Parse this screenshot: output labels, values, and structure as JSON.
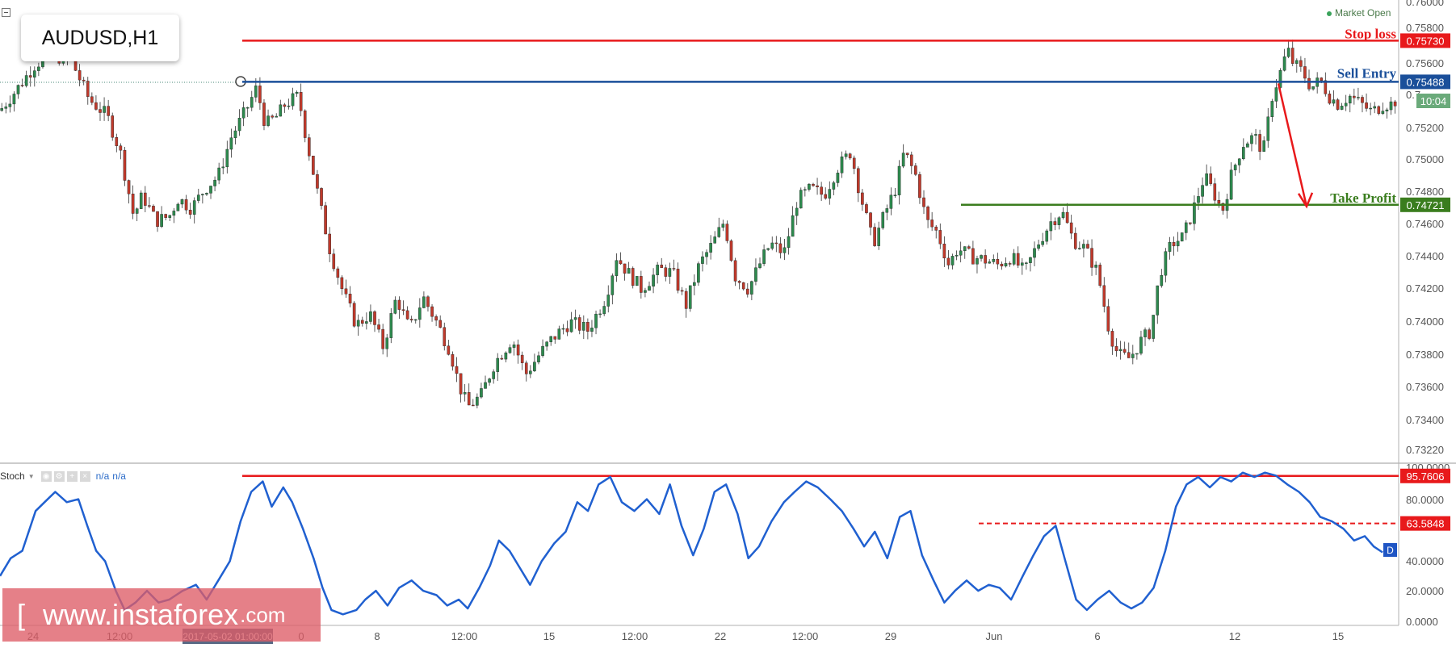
{
  "symbol": "AUDUSD,H1",
  "market_status": "Market Open",
  "watermark": {
    "bracket": "[",
    "site": "www.instaforex",
    "tld": ".com"
  },
  "indicator": {
    "name": "Stoch",
    "value1": "n/a",
    "value2": "n/a"
  },
  "crosshair_time_label": "2017-05-02 01:00:00",
  "countdown": "10:04",
  "colors": {
    "up": "#2d8a4e",
    "down": "#c0392b",
    "red_line": "#e8191b",
    "blue_line": "#1a4f9a",
    "green_line": "#3a7d1e",
    "stoch_line": "#2060d0"
  },
  "chart_data": [
    {
      "type": "candlestick",
      "ylim": [
        0.7314,
        0.7609
      ],
      "yticks": [
        "0.76000",
        "0.75800",
        "0.75600",
        "0.75200",
        "0.75000",
        "0.74800",
        "0.74600",
        "0.74400",
        "0.74200",
        "0.74000",
        "0.73800",
        "0.73600",
        "0.73400",
        "0.73220"
      ],
      "xticks": [
        "24",
        "12:00",
        "0",
        "8",
        "12:00",
        "15",
        "12:00",
        "22",
        "12:00",
        "29",
        "Jun",
        "6",
        "12",
        "15"
      ],
      "close_path": [
        [
          0,
          0.7531
        ],
        [
          20,
          0.7545
        ],
        [
          40,
          0.756
        ],
        [
          60,
          0.7565
        ],
        [
          80,
          0.7562
        ],
        [
          100,
          0.7538
        ],
        [
          120,
          0.7528
        ],
        [
          135,
          0.7505
        ],
        [
          150,
          0.7465
        ],
        [
          160,
          0.7478
        ],
        [
          175,
          0.7462
        ],
        [
          190,
          0.7465
        ],
        [
          200,
          0.7476
        ],
        [
          215,
          0.747
        ],
        [
          230,
          0.7482
        ],
        [
          245,
          0.749
        ],
        [
          260,
          0.7515
        ],
        [
          275,
          0.753
        ],
        [
          288,
          0.7545
        ],
        [
          298,
          0.7522
        ],
        [
          312,
          0.7528
        ],
        [
          320,
          0.7535
        ],
        [
          335,
          0.754
        ],
        [
          345,
          0.751
        ],
        [
          360,
          0.747
        ],
        [
          370,
          0.7445
        ],
        [
          385,
          0.7418
        ],
        [
          400,
          0.7398
        ],
        [
          415,
          0.7405
        ],
        [
          430,
          0.7385
        ],
        [
          445,
          0.7415
        ],
        [
          460,
          0.7395
        ],
        [
          475,
          0.7415
        ],
        [
          490,
          0.74
        ],
        [
          505,
          0.7383
        ],
        [
          515,
          0.7362
        ],
        [
          525,
          0.7348
        ],
        [
          540,
          0.7355
        ],
        [
          555,
          0.7375
        ],
        [
          575,
          0.739
        ],
        [
          590,
          0.7368
        ],
        [
          605,
          0.738
        ],
        [
          620,
          0.739
        ],
        [
          640,
          0.74
        ],
        [
          660,
          0.7395
        ],
        [
          680,
          0.7415
        ],
        [
          692,
          0.744
        ],
        [
          705,
          0.743
        ],
        [
          720,
          0.742
        ],
        [
          740,
          0.7432
        ],
        [
          755,
          0.743
        ],
        [
          770,
          0.741
        ],
        [
          785,
          0.7435
        ],
        [
          800,
          0.7448
        ],
        [
          813,
          0.7462
        ],
        [
          825,
          0.7428
        ],
        [
          840,
          0.742
        ],
        [
          855,
          0.7438
        ],
        [
          865,
          0.7448
        ],
        [
          880,
          0.7442
        ],
        [
          895,
          0.7475
        ],
        [
          910,
          0.7482
        ],
        [
          925,
          0.7478
        ],
        [
          940,
          0.7495
        ],
        [
          955,
          0.7505
        ],
        [
          965,
          0.748
        ],
        [
          980,
          0.7448
        ],
        [
          992,
          0.7465
        ],
        [
          1005,
          0.7482
        ],
        [
          1015,
          0.7505
        ],
        [
          1028,
          0.749
        ],
        [
          1040,
          0.7462
        ],
        [
          1052,
          0.7455
        ],
        [
          1065,
          0.7435
        ],
        [
          1075,
          0.7445
        ],
        [
          1090,
          0.744
        ],
        [
          1105,
          0.7438
        ],
        [
          1120,
          0.7435
        ],
        [
          1135,
          0.744
        ],
        [
          1150,
          0.743
        ],
        [
          1165,
          0.7448
        ],
        [
          1180,
          0.7462
        ],
        [
          1192,
          0.7468
        ],
        [
          1205,
          0.745
        ],
        [
          1218,
          0.7445
        ],
        [
          1232,
          0.743
        ],
        [
          1245,
          0.7395
        ],
        [
          1255,
          0.738
        ],
        [
          1268,
          0.7378
        ],
        [
          1280,
          0.7388
        ],
        [
          1292,
          0.7395
        ],
        [
          1302,
          0.743
        ],
        [
          1315,
          0.7448
        ],
        [
          1328,
          0.7452
        ],
        [
          1340,
          0.747
        ],
        [
          1352,
          0.749
        ],
        [
          1362,
          0.748
        ],
        [
          1372,
          0.7468
        ],
        [
          1382,
          0.749
        ],
        [
          1395,
          0.751
        ],
        [
          1408,
          0.7515
        ],
        [
          1418,
          0.7505
        ],
        [
          1428,
          0.754
        ],
        [
          1438,
          0.7556
        ],
        [
          1445,
          0.7568
        ],
        [
          1452,
          0.756
        ],
        [
          1462,
          0.7555
        ],
        [
          1472,
          0.7545
        ],
        [
          1482,
          0.755
        ],
        [
          1492,
          0.754
        ],
        [
          1502,
          0.7535
        ],
        [
          1515,
          0.754
        ],
        [
          1528,
          0.7535
        ],
        [
          1540,
          0.753
        ],
        [
          1553,
          0.7535
        ],
        [
          1563,
          0.7535
        ],
        [
          1570,
          0.754
        ]
      ],
      "levels": [
        {
          "name": "Stop loss",
          "value": 0.7573,
          "label": "0.75730",
          "color": "#e8191b"
        },
        {
          "name": "Sell Entry",
          "value": 0.75488,
          "label": "0.75488",
          "color": "#1a4f9a"
        },
        {
          "name": "Take Profit",
          "value": 0.74721,
          "label": "0.74721",
          "color": "#3a7d1e"
        }
      ],
      "last_price_label": "0.7",
      "annotations": [
        "Stop loss",
        "Sell Entry",
        "Take Profit"
      ]
    },
    {
      "type": "line",
      "name": "Stoch",
      "ylim": [
        0,
        100
      ],
      "yticks": [
        "100.0000",
        "80.0000",
        "40.0000",
        "20.0000",
        "0.0000"
      ],
      "levels": [
        {
          "value": 95.7606,
          "label": "95.7606",
          "style": "solid"
        },
        {
          "value": 63.5848,
          "label": "63.5848",
          "style": "dashed"
        }
      ],
      "d_badge": "D",
      "series": [
        [
          0,
          28
        ],
        [
          12,
          40
        ],
        [
          25,
          45
        ],
        [
          40,
          72
        ],
        [
          50,
          78
        ],
        [
          62,
          85
        ],
        [
          75,
          78
        ],
        [
          88,
          80
        ],
        [
          98,
          62
        ],
        [
          108,
          45
        ],
        [
          118,
          38
        ],
        [
          130,
          18
        ],
        [
          140,
          5
        ],
        [
          152,
          10
        ],
        [
          165,
          18
        ],
        [
          178,
          10
        ],
        [
          190,
          12
        ],
        [
          205,
          18
        ],
        [
          220,
          22
        ],
        [
          232,
          12
        ],
        [
          245,
          25
        ],
        [
          258,
          38
        ],
        [
          270,
          65
        ],
        [
          282,
          85
        ],
        [
          295,
          92
        ],
        [
          305,
          75
        ],
        [
          318,
          88
        ],
        [
          328,
          78
        ],
        [
          340,
          60
        ],
        [
          352,
          40
        ],
        [
          362,
          20
        ],
        [
          372,
          5
        ],
        [
          385,
          2
        ],
        [
          400,
          5
        ],
        [
          410,
          12
        ],
        [
          422,
          18
        ],
        [
          435,
          8
        ],
        [
          448,
          20
        ],
        [
          462,
          25
        ],
        [
          475,
          18
        ],
        [
          490,
          15
        ],
        [
          502,
          8
        ],
        [
          515,
          12
        ],
        [
          525,
          6
        ],
        [
          538,
          20
        ],
        [
          550,
          35
        ],
        [
          560,
          52
        ],
        [
          572,
          45
        ],
        [
          582,
          35
        ],
        [
          595,
          22
        ],
        [
          608,
          38
        ],
        [
          622,
          50
        ],
        [
          635,
          58
        ],
        [
          648,
          78
        ],
        [
          660,
          72
        ],
        [
          672,
          90
        ],
        [
          685,
          95
        ],
        [
          698,
          78
        ],
        [
          712,
          72
        ],
        [
          726,
          80
        ],
        [
          740,
          70
        ],
        [
          752,
          90
        ],
        [
          765,
          62
        ],
        [
          778,
          42
        ],
        [
          790,
          60
        ],
        [
          802,
          85
        ],
        [
          815,
          90
        ],
        [
          828,
          70
        ],
        [
          840,
          40
        ],
        [
          852,
          48
        ],
        [
          866,
          65
        ],
        [
          880,
          78
        ],
        [
          892,
          85
        ],
        [
          905,
          92
        ],
        [
          918,
          88
        ],
        [
          932,
          80
        ],
        [
          945,
          72
        ],
        [
          958,
          60
        ],
        [
          970,
          48
        ],
        [
          982,
          58
        ],
        [
          996,
          40
        ],
        [
          1010,
          68
        ],
        [
          1022,
          72
        ],
        [
          1035,
          42
        ],
        [
          1048,
          25
        ],
        [
          1060,
          10
        ],
        [
          1072,
          18
        ],
        [
          1085,
          25
        ],
        [
          1098,
          18
        ],
        [
          1110,
          22
        ],
        [
          1122,
          20
        ],
        [
          1135,
          12
        ],
        [
          1148,
          28
        ],
        [
          1160,
          42
        ],
        [
          1172,
          55
        ],
        [
          1185,
          62
        ],
        [
          1195,
          40
        ],
        [
          1208,
          12
        ],
        [
          1220,
          5
        ],
        [
          1232,
          12
        ],
        [
          1245,
          18
        ],
        [
          1258,
          10
        ],
        [
          1270,
          6
        ],
        [
          1282,
          10
        ],
        [
          1295,
          20
        ],
        [
          1308,
          45
        ],
        [
          1320,
          75
        ],
        [
          1332,
          90
        ],
        [
          1345,
          95
        ],
        [
          1358,
          88
        ],
        [
          1370,
          95
        ],
        [
          1382,
          92
        ],
        [
          1395,
          98
        ],
        [
          1408,
          95
        ],
        [
          1420,
          98
        ],
        [
          1432,
          96
        ],
        [
          1445,
          90
        ],
        [
          1458,
          85
        ],
        [
          1470,
          78
        ],
        [
          1482,
          68
        ],
        [
          1495,
          65
        ],
        [
          1508,
          60
        ],
        [
          1520,
          52
        ],
        [
          1532,
          55
        ],
        [
          1542,
          48
        ],
        [
          1552,
          44
        ]
      ]
    }
  ]
}
